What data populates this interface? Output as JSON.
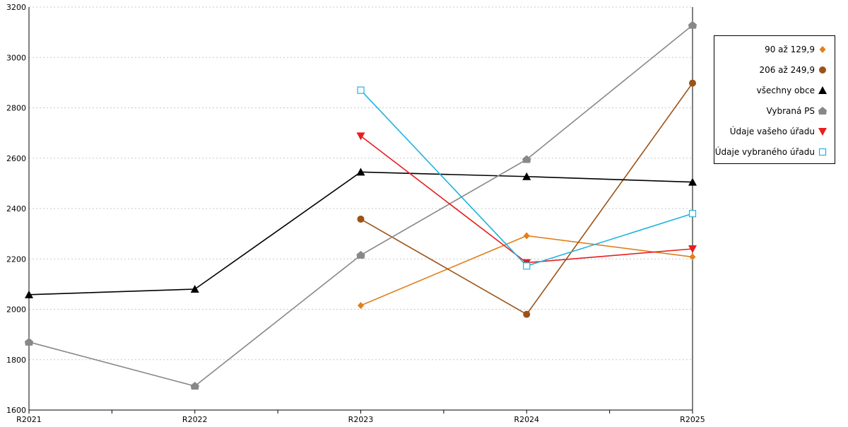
{
  "chart_data": {
    "type": "line",
    "categories": [
      "R2021",
      "R2022",
      "R2023",
      "R2024",
      "R2025"
    ],
    "ylim": [
      1600,
      3200
    ],
    "yticks": [
      1600,
      1800,
      2000,
      2200,
      2400,
      2600,
      2800,
      3000,
      3200
    ],
    "grid": "horizontal-dotted",
    "legend_position": "right",
    "series": [
      {
        "name": "90 až 129,9",
        "color": "#E0801E",
        "marker": "diamond",
        "values": [
          null,
          null,
          2015,
          2292,
          2208
        ]
      },
      {
        "name": "206 až 249,9",
        "color": "#9B5316",
        "marker": "circle",
        "values": [
          null,
          null,
          2358,
          1980,
          2898
        ]
      },
      {
        "name": "všechny obce",
        "color": "#000000",
        "marker": "triangle-up",
        "values": [
          2058,
          2080,
          2545,
          2527,
          2505
        ]
      },
      {
        "name": "Vybraná PS",
        "color": "#888888",
        "marker": "house",
        "values": [
          1870,
          1695,
          2215,
          2595,
          3128
        ]
      },
      {
        "name": "Údaje vašeho úřadu",
        "color": "#E81E1E",
        "marker": "triangle-down",
        "values": [
          null,
          null,
          2688,
          2185,
          2240
        ]
      },
      {
        "name": "Údaje vybraného úřadu",
        "color": "#1EB4E0",
        "marker": "square-open",
        "values": [
          null,
          null,
          2870,
          2172,
          2380
        ]
      }
    ]
  }
}
